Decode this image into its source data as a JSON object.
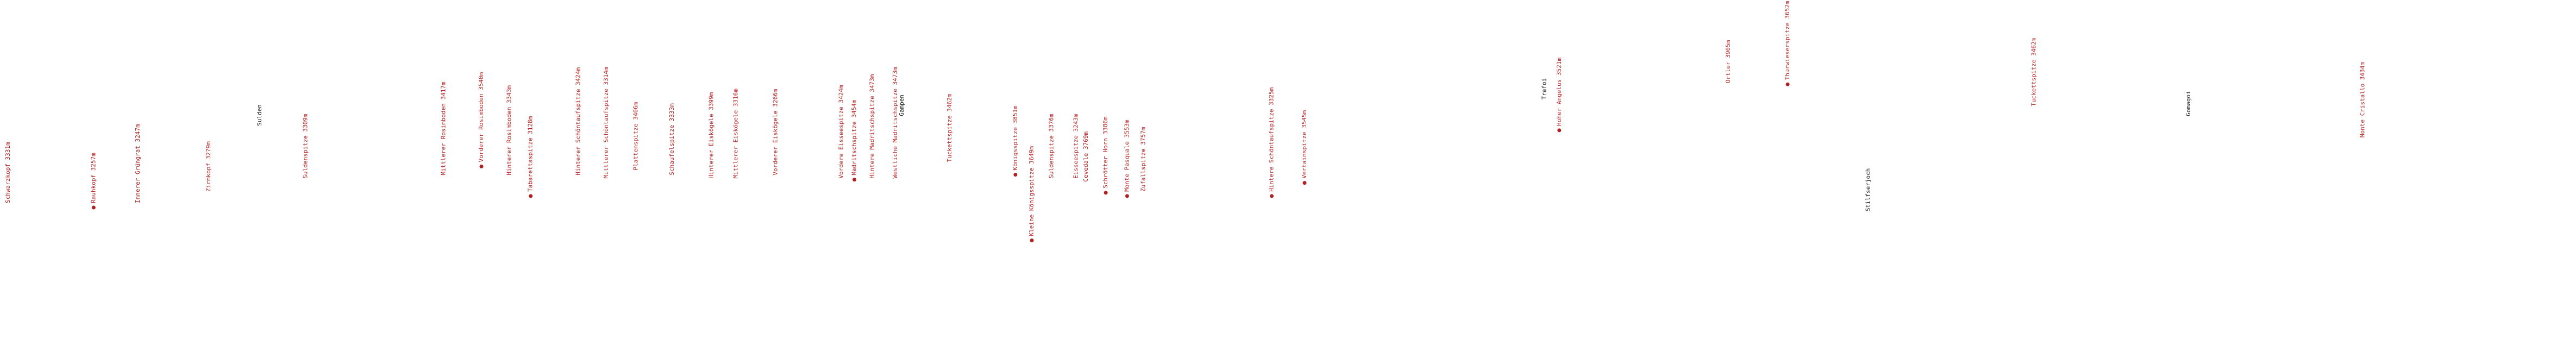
{
  "labels": [
    {
      "text": "Schwarzkopf 3331m"
    },
    {
      "text": "Rauhkopf 3257m"
    },
    {
      "text": "Innerer Grüngrat 3247m"
    },
    {
      "text": "Zirmkopf 3279m"
    },
    {
      "text": "Sulden"
    },
    {
      "text": "Suldenspitze 3309m"
    },
    {
      "text": "Mittlerer Rosimboden 3417m"
    },
    {
      "text": "Vorderer Rosimboden 3540m"
    },
    {
      "text": "Hinterer Rosimboden 3343m"
    },
    {
      "text": "Tabarettaspitze 3128m"
    },
    {
      "text": "Hinterer Schöntaufspitze 3424m"
    },
    {
      "text": "Mittlerer Schöntaufspitze 3314m"
    },
    {
      "text": "Plattenspitze 3406m"
    },
    {
      "text": "Schaufelspitze 3333m"
    },
    {
      "text": "Hinterer Eiskögele 3399m"
    },
    {
      "text": "Mittlerer Eiskögele 3316m"
    },
    {
      "text": "Vorderer Eiskögele 3266m"
    },
    {
      "text": "Vordere Eisseespitze 3424m"
    },
    {
      "text": "Madritschspitze 3454m"
    },
    {
      "text": "Hintere Madritschspitze 3473m"
    },
    {
      "text": "Westliche Madritschspitze 3473m"
    },
    {
      "text": "Gampen"
    },
    {
      "text": "Tuckettspitze 3462m"
    },
    {
      "text": "Königsspitze 3851m"
    },
    {
      "text": "Kleine Königsspitze 3649m"
    },
    {
      "text": "Suldenspitze 3376m"
    },
    {
      "text": "Eisseespitze 3243m"
    },
    {
      "text": "Cevedale 3769m"
    },
    {
      "text": "Schrötter Horn 3386m"
    },
    {
      "text": "Monte Pasquale 3553m"
    },
    {
      "text": "Zufallspitze 3757m"
    },
    {
      "text": "Hintere Schöntaufspitze 3325m"
    },
    {
      "text": "Vertainspitze 3545m"
    },
    {
      "text": "Trafoi"
    },
    {
      "text": "Hoher Angelus 3521m"
    },
    {
      "text": "Ortler 3905m"
    },
    {
      "text": "Thurwieserspitze 3652m"
    },
    {
      "text": "Stilfserjoch"
    },
    {
      "text": "Tuckettspitze 3462m"
    },
    {
      "text": "Gomagoi"
    },
    {
      "text": "Monte Cristallo 3434m"
    }
  ]
}
